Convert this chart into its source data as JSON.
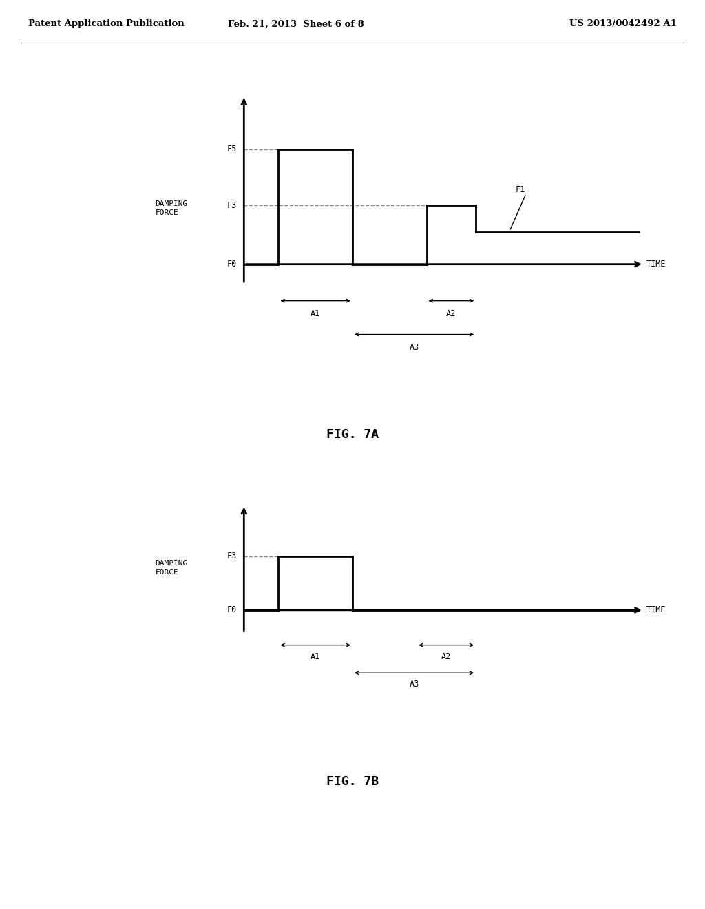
{
  "bg_color": "#ffffff",
  "header_left": "Patent Application Publication",
  "header_mid": "Feb. 21, 2013  Sheet 6 of 8",
  "header_right": "US 2013/0042492 A1",
  "fig7a_title": "FIG. 7A",
  "fig7b_title": "FIG. 7B",
  "line_color": "#000000",
  "dashed_color": "#888888"
}
